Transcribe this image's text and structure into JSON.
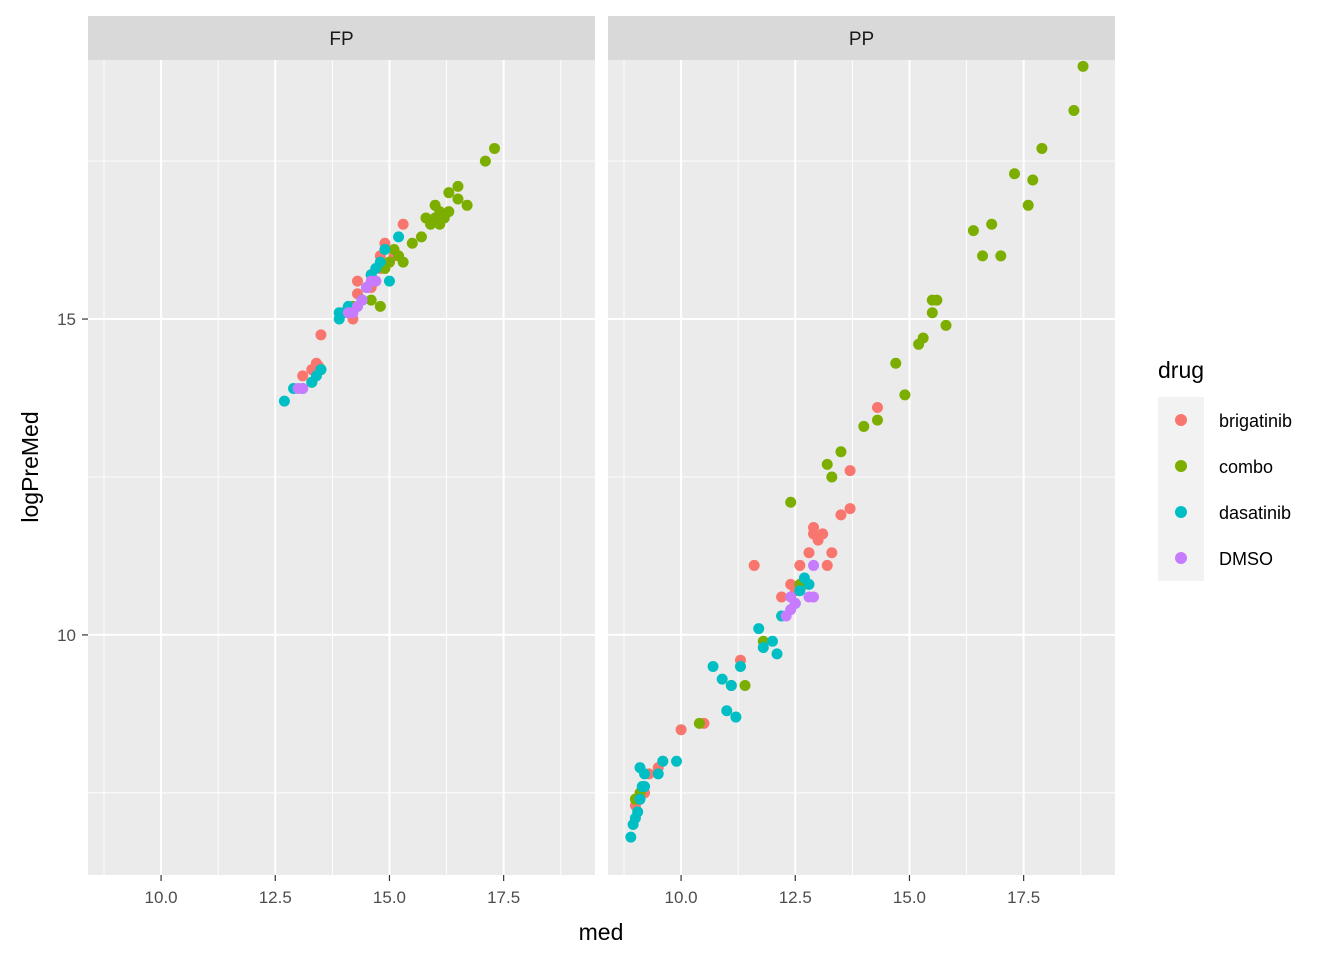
{
  "chart_data": {
    "type": "scatter",
    "xlabel": "med",
    "ylabel": "logPreMed",
    "xlim": [
      8.4,
      19.5
    ],
    "ylim": [
      6.2,
      19.1
    ],
    "x_ticks": [
      10,
      12.5,
      15,
      17.5
    ],
    "x_tick_labels": [
      "10.0",
      "12.5",
      "15.0",
      "17.5"
    ],
    "y_ticks": [
      10,
      15
    ],
    "y_tick_labels": [
      "10",
      "15"
    ],
    "grid": true,
    "legend_title": "drug",
    "legend_position": "right",
    "colors": {
      "brigatinib": "#F8766D",
      "combo": "#7CAE00",
      "dasatinib": "#00BFC4",
      "DMSO": "#C77CFF"
    },
    "panels": [
      {
        "name": "FP",
        "series": [
          {
            "name": "brigatinib",
            "points": [
              [
                13.1,
                14.1
              ],
              [
                13.3,
                14.2
              ],
              [
                13.4,
                14.3
              ],
              [
                13.45,
                14.25
              ],
              [
                13.5,
                14.75
              ],
              [
                14.0,
                15.1
              ],
              [
                14.2,
                15.0
              ],
              [
                14.3,
                15.4
              ],
              [
                14.3,
                15.6
              ],
              [
                14.4,
                15.3
              ],
              [
                14.5,
                15.5
              ],
              [
                14.6,
                15.5
              ],
              [
                14.6,
                15.7
              ],
              [
                14.7,
                15.6
              ],
              [
                14.8,
                15.8
              ],
              [
                14.8,
                16.0
              ],
              [
                14.9,
                16.2
              ],
              [
                15.0,
                15.9
              ],
              [
                15.1,
                16.0
              ],
              [
                15.3,
                16.5
              ]
            ]
          },
          {
            "name": "combo",
            "points": [
              [
                13.3,
                14.0
              ],
              [
                13.5,
                14.2
              ],
              [
                14.0,
                15.1
              ],
              [
                14.2,
                15.2
              ],
              [
                14.4,
                15.3
              ],
              [
                14.6,
                15.3
              ],
              [
                14.8,
                15.2
              ],
              [
                14.9,
                15.8
              ],
              [
                15.0,
                15.9
              ],
              [
                15.1,
                16.1
              ],
              [
                15.2,
                16.0
              ],
              [
                15.3,
                15.9
              ],
              [
                15.5,
                16.2
              ],
              [
                15.7,
                16.3
              ],
              [
                15.8,
                16.6
              ],
              [
                15.9,
                16.5
              ],
              [
                16.0,
                16.8
              ],
              [
                16.0,
                16.6
              ],
              [
                16.1,
                16.7
              ],
              [
                16.1,
                16.5
              ],
              [
                16.2,
                16.6
              ],
              [
                16.3,
                16.7
              ],
              [
                16.3,
                17.0
              ],
              [
                16.5,
                17.1
              ],
              [
                16.5,
                16.9
              ],
              [
                16.7,
                16.8
              ],
              [
                17.1,
                17.5
              ],
              [
                17.3,
                17.7
              ]
            ]
          },
          {
            "name": "dasatinib",
            "points": [
              [
                12.7,
                13.7
              ],
              [
                12.9,
                13.9
              ],
              [
                13.1,
                13.9
              ],
              [
                13.3,
                14.0
              ],
              [
                13.4,
                14.1
              ],
              [
                13.5,
                14.2
              ],
              [
                13.9,
                15.0
              ],
              [
                13.9,
                15.1
              ],
              [
                14.0,
                15.1
              ],
              [
                14.1,
                15.2
              ],
              [
                14.3,
                15.2
              ],
              [
                14.4,
                15.3
              ],
              [
                14.5,
                15.5
              ],
              [
                14.6,
                15.7
              ],
              [
                14.7,
                15.8
              ],
              [
                14.8,
                15.9
              ],
              [
                14.9,
                16.1
              ],
              [
                15.0,
                15.6
              ],
              [
                15.2,
                16.3
              ]
            ]
          },
          {
            "name": "DMSO",
            "points": [
              [
                13.0,
                13.9
              ],
              [
                13.1,
                13.9
              ],
              [
                14.1,
                15.1
              ],
              [
                14.2,
                15.1
              ],
              [
                14.3,
                15.2
              ],
              [
                14.4,
                15.3
              ],
              [
                14.5,
                15.5
              ],
              [
                14.6,
                15.6
              ],
              [
                14.7,
                15.6
              ]
            ]
          }
        ]
      },
      {
        "name": "PP",
        "series": [
          {
            "name": "brigatinib",
            "points": [
              [
                9.0,
                7.3
              ],
              [
                9.1,
                7.4
              ],
              [
                9.2,
                7.5
              ],
              [
                9.3,
                7.8
              ],
              [
                9.5,
                7.9
              ],
              [
                9.6,
                8.0
              ],
              [
                10.0,
                8.5
              ],
              [
                10.5,
                8.6
              ],
              [
                11.3,
                9.6
              ],
              [
                11.6,
                11.1
              ],
              [
                12.2,
                10.6
              ],
              [
                12.4,
                10.8
              ],
              [
                12.5,
                10.7
              ],
              [
                12.6,
                11.1
              ],
              [
                12.7,
                10.8
              ],
              [
                12.8,
                11.3
              ],
              [
                12.9,
                11.6
              ],
              [
                12.9,
                11.7
              ],
              [
                13.0,
                11.5
              ],
              [
                13.1,
                11.6
              ],
              [
                13.2,
                11.1
              ],
              [
                13.3,
                11.3
              ],
              [
                13.5,
                11.9
              ],
              [
                13.7,
                12.0
              ],
              [
                13.7,
                12.6
              ],
              [
                14.3,
                13.6
              ]
            ]
          },
          {
            "name": "combo",
            "points": [
              [
                9.0,
                7.4
              ],
              [
                9.1,
                7.5
              ],
              [
                10.4,
                8.6
              ],
              [
                11.1,
                9.2
              ],
              [
                11.4,
                9.2
              ],
              [
                11.8,
                9.9
              ],
              [
                12.4,
                12.1
              ],
              [
                12.6,
                10.8
              ],
              [
                13.2,
                12.7
              ],
              [
                13.3,
                12.5
              ],
              [
                13.5,
                12.9
              ],
              [
                14.0,
                13.3
              ],
              [
                14.3,
                13.4
              ],
              [
                14.7,
                14.3
              ],
              [
                14.9,
                13.8
              ],
              [
                15.2,
                14.6
              ],
              [
                15.3,
                14.7
              ],
              [
                15.5,
                15.1
              ],
              [
                15.5,
                15.3
              ],
              [
                15.6,
                15.3
              ],
              [
                15.8,
                14.9
              ],
              [
                16.4,
                16.4
              ],
              [
                16.6,
                16.0
              ],
              [
                16.8,
                16.5
              ],
              [
                17.0,
                16.0
              ],
              [
                17.3,
                17.3
              ],
              [
                17.6,
                16.8
              ],
              [
                17.7,
                17.2
              ],
              [
                17.9,
                17.7
              ],
              [
                18.6,
                18.3
              ],
              [
                18.8,
                19.0
              ]
            ]
          },
          {
            "name": "dasatinib",
            "points": [
              [
                8.9,
                6.8
              ],
              [
                8.95,
                7.0
              ],
              [
                9.0,
                7.1
              ],
              [
                9.05,
                7.2
              ],
              [
                9.1,
                7.4
              ],
              [
                9.15,
                7.6
              ],
              [
                9.2,
                7.8
              ],
              [
                9.1,
                7.9
              ],
              [
                9.2,
                7.6
              ],
              [
                9.5,
                7.8
              ],
              [
                9.6,
                8.0
              ],
              [
                9.9,
                8.0
              ],
              [
                10.7,
                9.5
              ],
              [
                10.9,
                9.3
              ],
              [
                11.0,
                8.8
              ],
              [
                11.1,
                9.2
              ],
              [
                11.2,
                8.7
              ],
              [
                11.3,
                9.5
              ],
              [
                11.7,
                10.1
              ],
              [
                11.8,
                9.8
              ],
              [
                12.0,
                9.9
              ],
              [
                12.1,
                9.7
              ],
              [
                12.2,
                10.3
              ],
              [
                12.5,
                10.5
              ],
              [
                12.6,
                10.7
              ],
              [
                12.7,
                10.9
              ],
              [
                12.8,
                10.8
              ]
            ]
          },
          {
            "name": "DMSO",
            "points": [
              [
                12.3,
                10.3
              ],
              [
                12.4,
                10.6
              ],
              [
                12.4,
                10.4
              ],
              [
                12.5,
                10.5
              ],
              [
                12.8,
                10.6
              ],
              [
                12.9,
                10.6
              ],
              [
                12.9,
                11.1
              ]
            ]
          }
        ]
      }
    ]
  }
}
